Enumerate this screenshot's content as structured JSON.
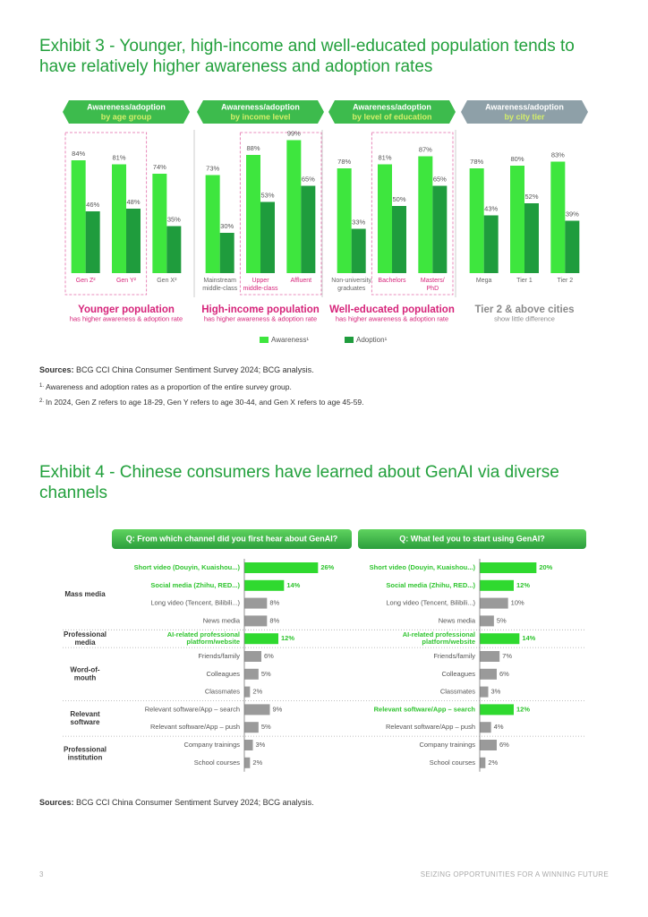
{
  "exhibit3": {
    "title": [
      "Exhibit 3 - Younger, high-income and well-educated population tends to",
      "have relatively higher awareness and adoption rates"
    ]
  },
  "legend": [
    {
      "name": "Awareness¹",
      "color": "#3ee63e"
    },
    {
      "name": "Adoption¹",
      "color": "#1f9c3d"
    }
  ],
  "sources3": {
    "label": "Sources:",
    "text": "BCG CCI China Consumer Sentiment Survey 2024; BCG analysis."
  },
  "notes": [
    {
      "marker": "1.",
      "text": "Awareness and adoption rates as a proportion of the entire survey group."
    },
    {
      "marker": "2.",
      "text": "In 2024, Gen Z refers to age 18-29, Gen Y refers to age 30-44, and Gen X refers to age 45-59."
    }
  ],
  "exhibit4": {
    "title": [
      "Exhibit 4 - Chinese consumers have learned about GenAI via diverse",
      "channels"
    ]
  },
  "sources4": {
    "label": "Sources:",
    "text": "BCG CCI China Consumer Sentiment Survey 2024; BCG analysis."
  },
  "footer": {
    "page_number": "3",
    "text": "SEIZING OPPORTUNITIES FOR A WINNING FUTURE"
  },
  "chart_data": [
    {
      "type": "bar",
      "title": "Awareness/adoption",
      "subtitle": "by age group",
      "header_color": "#3dbb4d",
      "ylim": [
        0,
        100
      ],
      "categories": [
        [
          "Gen Z²"
        ],
        [
          "Gen Y²"
        ],
        [
          "Gen X²"
        ]
      ],
      "highlight": [
        true,
        true,
        false
      ],
      "series": [
        {
          "values": [
            84,
            81,
            74
          ],
          "value_labels": [
            "84%",
            "81%",
            "74%"
          ]
        },
        {
          "values": [
            46,
            48,
            35
          ],
          "value_labels": [
            "46%",
            "48%",
            "35%"
          ]
        }
      ],
      "caption": "Younger population",
      "caption_note": "has higher awareness & adoption rate",
      "caption_color": "#d6247a"
    },
    {
      "type": "bar",
      "title": "Awareness/adoption",
      "subtitle": "by income level",
      "header_color": "#3dbb4d",
      "ylim": [
        0,
        100
      ],
      "categories": [
        [
          "Mainstream",
          "middle-class"
        ],
        [
          "Upper",
          "middle-class"
        ],
        [
          "Affluent"
        ]
      ],
      "highlight": [
        false,
        true,
        true
      ],
      "series": [
        {
          "values": [
            73,
            88,
            99
          ],
          "value_labels": [
            "73%",
            "88%",
            "99%"
          ]
        },
        {
          "values": [
            30,
            53,
            65
          ],
          "value_labels": [
            "30%",
            "53%",
            "65%"
          ]
        }
      ],
      "caption": "High-income population",
      "caption_note": "has higher awareness & adoption rate",
      "caption_color": "#d6247a"
    },
    {
      "type": "bar",
      "title": "Awareness/adoption",
      "subtitle": "by level of education",
      "header_color": "#3dbb4d",
      "ylim": [
        0,
        100
      ],
      "categories": [
        [
          "Non-university",
          "graduates"
        ],
        [
          "Bachelors"
        ],
        [
          "Masters/",
          "PhD"
        ]
      ],
      "highlight": [
        false,
        true,
        true
      ],
      "series": [
        {
          "values": [
            78,
            81,
            87
          ],
          "value_labels": [
            "78%",
            "81%",
            "87%"
          ]
        },
        {
          "values": [
            33,
            50,
            65
          ],
          "value_labels": [
            "33%",
            "50%",
            "65%"
          ]
        }
      ],
      "caption": "Well-educated population",
      "caption_note": "has higher awareness & adoption rate",
      "caption_color": "#d6247a"
    },
    {
      "type": "bar",
      "title": "Awareness/adoption",
      "subtitle": "by city tier",
      "header_color": "#8ea0a8",
      "ylim": [
        0,
        100
      ],
      "categories": [
        [
          "Mega"
        ],
        [
          "Tier 1"
        ],
        [
          "Tier 2"
        ]
      ],
      "highlight": [
        false,
        false,
        false
      ],
      "series": [
        {
          "values": [
            78,
            80,
            83
          ],
          "value_labels": [
            "78%",
            "80%",
            "83%"
          ]
        },
        {
          "values": [
            43,
            52,
            39
          ],
          "value_labels": [
            "43%",
            "52%",
            "39%"
          ]
        }
      ],
      "caption": "Tier 2 & above cities",
      "caption_note": "show little difference",
      "caption_color": "#8a8a8a"
    },
    {
      "type": "hbar",
      "title": "Q: From which channel did you first hear about GenAI?",
      "xlim": [
        0,
        30
      ],
      "color": "#9a9a9a",
      "highlight_color": "#2fd92f",
      "groups": [
        {
          "label": [
            "Mass media"
          ],
          "categories": [
            "Short video (Douyin, Kuaishou...)",
            "Social media (Zhihu, RED...)",
            "Long video (Tencent, Bilibili...)",
            "News media"
          ],
          "values": [
            26,
            14,
            8,
            8
          ],
          "value_labels": [
            "26%",
            "14%",
            "8%",
            "8%"
          ],
          "highlight": [
            true,
            true,
            false,
            false
          ]
        },
        {
          "label": [
            "Professional",
            "media"
          ],
          "categories": [
            [
              "AI-related professional",
              "platform/website"
            ]
          ],
          "values": [
            12
          ],
          "value_labels": [
            "12%"
          ],
          "highlight": [
            true
          ]
        },
        {
          "label": [
            "Word-of-",
            "mouth"
          ],
          "categories": [
            "Friends/family",
            "Colleagues",
            "Classmates"
          ],
          "values": [
            6,
            5,
            2
          ],
          "value_labels": [
            "6%",
            "5%",
            "2%"
          ],
          "highlight": [
            false,
            false,
            false
          ]
        },
        {
          "label": [
            "Relevant",
            "software"
          ],
          "categories": [
            "Relevant software/App – search",
            "Relevant software/App – push"
          ],
          "values": [
            9,
            5
          ],
          "value_labels": [
            "9%",
            "5%"
          ],
          "highlight": [
            false,
            false
          ]
        },
        {
          "label": [
            "Professional",
            "institution"
          ],
          "categories": [
            "Company trainings",
            "School courses"
          ],
          "values": [
            3,
            2
          ],
          "value_labels": [
            "3%",
            "2%"
          ],
          "highlight": [
            false,
            false
          ]
        }
      ]
    },
    {
      "type": "hbar",
      "title": "Q: What led you to start using GenAI?",
      "xlim": [
        0,
        30
      ],
      "color": "#9a9a9a",
      "highlight_color": "#2fd92f",
      "groups": [
        {
          "categories": [
            "Short video (Douyin, Kuaishou...)",
            "Social media (Zhihu, RED...)",
            "Long video (Tencent, Bilibili...)",
            "News media"
          ],
          "values": [
            20,
            12,
            10,
            5
          ],
          "value_labels": [
            "20%",
            "12%",
            "10%",
            "5%"
          ],
          "highlight": [
            true,
            true,
            false,
            false
          ]
        },
        {
          "categories": [
            [
              "AI-related professional",
              "platform/website"
            ]
          ],
          "values": [
            14
          ],
          "value_labels": [
            "14%"
          ],
          "highlight": [
            true
          ]
        },
        {
          "categories": [
            "Friends/family",
            "Colleagues",
            "Classmates"
          ],
          "values": [
            7,
            6,
            3
          ],
          "value_labels": [
            "7%",
            "6%",
            "3%"
          ],
          "highlight": [
            false,
            false,
            false
          ]
        },
        {
          "categories": [
            "Relevant software/App – search",
            "Relevant software/App – push"
          ],
          "values": [
            12,
            4
          ],
          "value_labels": [
            "12%",
            "4%"
          ],
          "highlight": [
            true,
            false
          ]
        },
        {
          "categories": [
            "Company trainings",
            "School courses"
          ],
          "values": [
            6,
            2
          ],
          "value_labels": [
            "6%",
            "2%"
          ],
          "highlight": [
            false,
            false
          ]
        }
      ]
    }
  ]
}
